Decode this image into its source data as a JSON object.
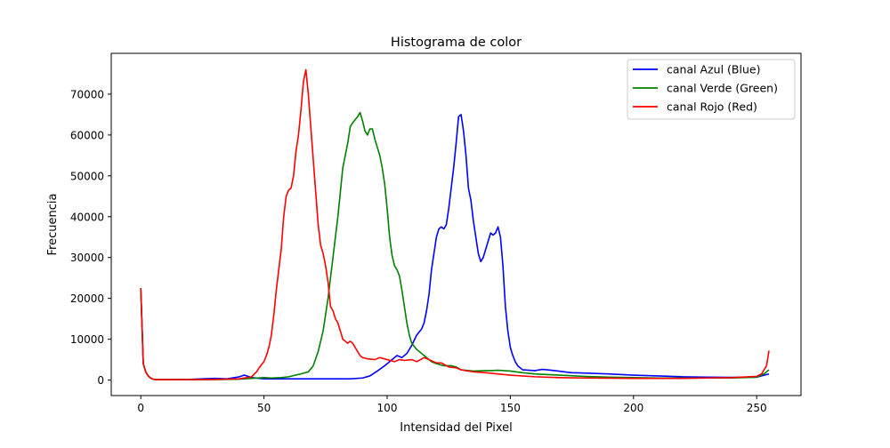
{
  "chart_data": {
    "type": "line",
    "title": "Histograma de color",
    "xlabel": "Intensidad del Pixel",
    "ylabel": "Frecuencia",
    "xlim": [
      -12,
      268
    ],
    "ylim": [
      -3800,
      80000
    ],
    "xticks": [
      0,
      50,
      100,
      150,
      200,
      250
    ],
    "yticks": [
      0,
      10000,
      20000,
      30000,
      40000,
      50000,
      60000,
      70000
    ],
    "grid": false,
    "legend_position": "top-right",
    "series": [
      {
        "name": "canal Azul (Blue)",
        "color": "#0000ff",
        "points": [
          [
            0,
            22000
          ],
          [
            1,
            4000
          ],
          [
            2,
            2000
          ],
          [
            3,
            1000
          ],
          [
            4,
            500
          ],
          [
            5,
            200
          ],
          [
            6,
            100
          ],
          [
            10,
            100
          ],
          [
            20,
            150
          ],
          [
            25,
            300
          ],
          [
            30,
            400
          ],
          [
            35,
            300
          ],
          [
            40,
            800
          ],
          [
            42,
            1200
          ],
          [
            45,
            600
          ],
          [
            50,
            300
          ],
          [
            60,
            300
          ],
          [
            70,
            300
          ],
          [
            80,
            300
          ],
          [
            85,
            300
          ],
          [
            90,
            500
          ],
          [
            93,
            1000
          ],
          [
            96,
            2200
          ],
          [
            99,
            3500
          ],
          [
            101,
            4500
          ],
          [
            103,
            5500
          ],
          [
            104,
            6000
          ],
          [
            106,
            5500
          ],
          [
            108,
            6500
          ],
          [
            110,
            8500
          ],
          [
            112,
            11000
          ],
          [
            114,
            12500
          ],
          [
            115,
            14000
          ],
          [
            116,
            17000
          ],
          [
            117,
            21000
          ],
          [
            118,
            27000
          ],
          [
            119,
            31000
          ],
          [
            120,
            35000
          ],
          [
            121,
            37000
          ],
          [
            122,
            37500
          ],
          [
            123,
            37000
          ],
          [
            124,
            38000
          ],
          [
            125,
            42000
          ],
          [
            126,
            47000
          ],
          [
            127,
            52000
          ],
          [
            128,
            58000
          ],
          [
            129,
            64500
          ],
          [
            130,
            65000
          ],
          [
            131,
            61000
          ],
          [
            132,
            55000
          ],
          [
            133,
            47000
          ],
          [
            134,
            44000
          ],
          [
            135,
            39000
          ],
          [
            136,
            35000
          ],
          [
            137,
            31000
          ],
          [
            138,
            29000
          ],
          [
            139,
            30000
          ],
          [
            140,
            32000
          ],
          [
            141,
            34000
          ],
          [
            142,
            36000
          ],
          [
            143,
            35500
          ],
          [
            144,
            36000
          ],
          [
            145,
            37500
          ],
          [
            146,
            35000
          ],
          [
            147,
            28000
          ],
          [
            148,
            18000
          ],
          [
            149,
            12000
          ],
          [
            150,
            8000
          ],
          [
            151,
            6000
          ],
          [
            152,
            4500
          ],
          [
            153,
            3500
          ],
          [
            155,
            2500
          ],
          [
            160,
            2300
          ],
          [
            163,
            2600
          ],
          [
            165,
            2500
          ],
          [
            168,
            2300
          ],
          [
            172,
            2000
          ],
          [
            175,
            1800
          ],
          [
            180,
            1700
          ],
          [
            185,
            1600
          ],
          [
            190,
            1500
          ],
          [
            200,
            1200
          ],
          [
            210,
            1000
          ],
          [
            220,
            800
          ],
          [
            230,
            700
          ],
          [
            240,
            650
          ],
          [
            250,
            700
          ],
          [
            255,
            1500
          ]
        ]
      },
      {
        "name": "canal Verde (Green)",
        "color": "#008000",
        "points": [
          [
            0,
            22500
          ],
          [
            1,
            4000
          ],
          [
            2,
            2000
          ],
          [
            3,
            1000
          ],
          [
            4,
            500
          ],
          [
            5,
            200
          ],
          [
            6,
            100
          ],
          [
            20,
            100
          ],
          [
            30,
            100
          ],
          [
            40,
            200
          ],
          [
            50,
            600
          ],
          [
            53,
            500
          ],
          [
            57,
            600
          ],
          [
            60,
            800
          ],
          [
            65,
            1500
          ],
          [
            68,
            2000
          ],
          [
            70,
            3500
          ],
          [
            72,
            7000
          ],
          [
            74,
            12000
          ],
          [
            76,
            20000
          ],
          [
            78,
            30000
          ],
          [
            80,
            40000
          ],
          [
            82,
            52000
          ],
          [
            84,
            58000
          ],
          [
            85,
            62000
          ],
          [
            86,
            63000
          ],
          [
            88,
            64500
          ],
          [
            89,
            65500
          ],
          [
            90,
            63500
          ],
          [
            91,
            61000
          ],
          [
            92,
            60000
          ],
          [
            93,
            61500
          ],
          [
            94,
            61500
          ],
          [
            95,
            59000
          ],
          [
            96,
            57000
          ],
          [
            97,
            55000
          ],
          [
            98,
            52000
          ],
          [
            99,
            48000
          ],
          [
            100,
            42000
          ],
          [
            101,
            35000
          ],
          [
            102,
            30500
          ],
          [
            103,
            28000
          ],
          [
            104,
            27000
          ],
          [
            105,
            25500
          ],
          [
            106,
            22000
          ],
          [
            107,
            18000
          ],
          [
            108,
            14000
          ],
          [
            109,
            11000
          ],
          [
            110,
            9000
          ],
          [
            112,
            7500
          ],
          [
            114,
            6500
          ],
          [
            116,
            5500
          ],
          [
            118,
            4500
          ],
          [
            120,
            4000
          ],
          [
            123,
            3500
          ],
          [
            126,
            3500
          ],
          [
            128,
            3200
          ],
          [
            130,
            2500
          ],
          [
            135,
            2200
          ],
          [
            140,
            2300
          ],
          [
            142,
            2300
          ],
          [
            145,
            2400
          ],
          [
            150,
            2200
          ],
          [
            155,
            1800
          ],
          [
            160,
            1500
          ],
          [
            170,
            1200
          ],
          [
            180,
            900
          ],
          [
            190,
            700
          ],
          [
            200,
            600
          ],
          [
            210,
            500
          ],
          [
            220,
            500
          ],
          [
            230,
            500
          ],
          [
            240,
            500
          ],
          [
            250,
            700
          ],
          [
            253,
            1500
          ],
          [
            255,
            2500
          ]
        ]
      },
      {
        "name": "canal Rojo (Red)",
        "color": "#ff0000",
        "points": [
          [
            0,
            22500
          ],
          [
            1,
            4000
          ],
          [
            2,
            2000
          ],
          [
            3,
            1000
          ],
          [
            4,
            500
          ],
          [
            5,
            200
          ],
          [
            6,
            100
          ],
          [
            20,
            100
          ],
          [
            30,
            150
          ],
          [
            40,
            300
          ],
          [
            45,
            800
          ],
          [
            47,
            2000
          ],
          [
            48,
            3000
          ],
          [
            50,
            4500
          ],
          [
            51,
            6000
          ],
          [
            52,
            8000
          ],
          [
            53,
            11000
          ],
          [
            54,
            16000
          ],
          [
            55,
            22000
          ],
          [
            56,
            27000
          ],
          [
            57,
            32000
          ],
          [
            58,
            40000
          ],
          [
            59,
            45000
          ],
          [
            60,
            46500
          ],
          [
            61,
            47000
          ],
          [
            62,
            50000
          ],
          [
            63,
            56000
          ],
          [
            64,
            60000
          ],
          [
            65,
            66000
          ],
          [
            66,
            73000
          ],
          [
            67,
            76000
          ],
          [
            68,
            70000
          ],
          [
            69,
            62000
          ],
          [
            70,
            54000
          ],
          [
            71,
            46000
          ],
          [
            72,
            38000
          ],
          [
            73,
            33000
          ],
          [
            74,
            31000
          ],
          [
            75,
            28000
          ],
          [
            76,
            24000
          ],
          [
            77,
            18000
          ],
          [
            78,
            17000
          ],
          [
            79,
            15000
          ],
          [
            80,
            14000
          ],
          [
            81,
            12000
          ],
          [
            82,
            10000
          ],
          [
            83,
            9500
          ],
          [
            84,
            9000
          ],
          [
            85,
            9500
          ],
          [
            86,
            9000
          ],
          [
            87,
            8000
          ],
          [
            88,
            7000
          ],
          [
            89,
            6000
          ],
          [
            90,
            5500
          ],
          [
            92,
            5200
          ],
          [
            95,
            5000
          ],
          [
            97,
            5500
          ],
          [
            100,
            5000
          ],
          [
            103,
            4500
          ],
          [
            105,
            5000
          ],
          [
            107,
            4800
          ],
          [
            110,
            5000
          ],
          [
            112,
            4500
          ],
          [
            115,
            5500
          ],
          [
            117,
            5000
          ],
          [
            120,
            4200
          ],
          [
            122,
            4200
          ],
          [
            125,
            3200
          ],
          [
            128,
            3000
          ],
          [
            130,
            2500
          ],
          [
            135,
            2000
          ],
          [
            140,
            1800
          ],
          [
            145,
            1500
          ],
          [
            150,
            1200
          ],
          [
            160,
            800
          ],
          [
            170,
            600
          ],
          [
            180,
            500
          ],
          [
            190,
            450
          ],
          [
            200,
            400
          ],
          [
            210,
            400
          ],
          [
            220,
            400
          ],
          [
            230,
            500
          ],
          [
            240,
            600
          ],
          [
            250,
            900
          ],
          [
            252,
            1500
          ],
          [
            254,
            3500
          ],
          [
            255,
            7200
          ]
        ]
      }
    ]
  }
}
